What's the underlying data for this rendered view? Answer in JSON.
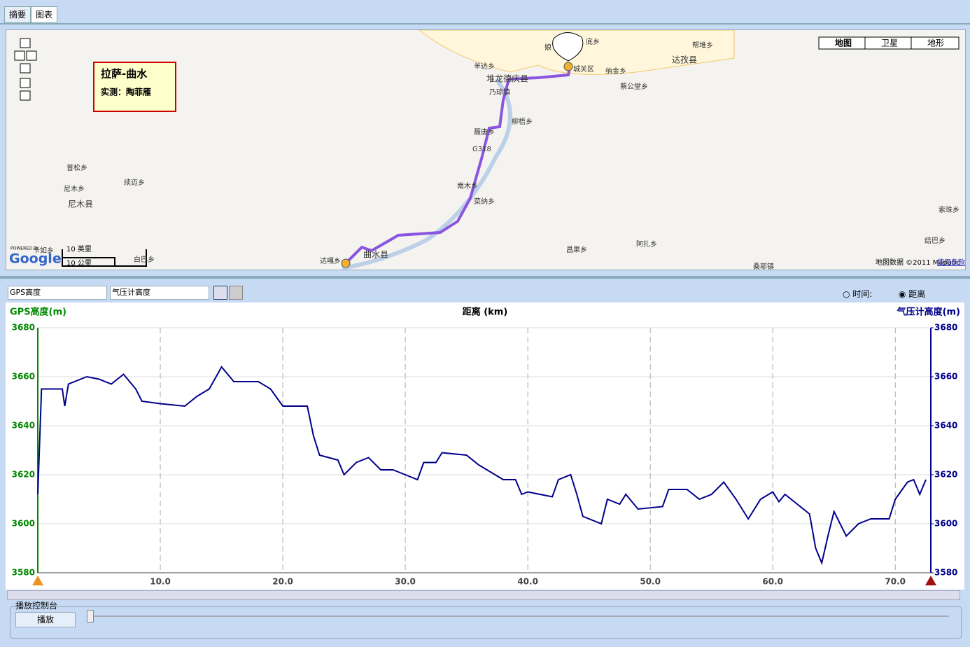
{
  "tabs": [
    "摘要",
    "图表"
  ],
  "map": {
    "info_title": "拉萨-曲水",
    "info_sub": "实测：陶菲雁",
    "types": [
      "地图",
      "卫星",
      "地形"
    ],
    "labels": [
      "羊达乡",
      "堆龙德庆县",
      "乃琼镇",
      "柳梧乡",
      "聂唐乡",
      "G318",
      "南木乡",
      "菜纳乡",
      "曲水县",
      "达嘎乡",
      "普松乡",
      "尼木乡",
      "续迈乡",
      "尼木县",
      "昌果乡",
      "阿扎乡",
      "桑耶镇",
      "纳金乡",
      "蔡公堂乡",
      "达孜县",
      "帮堆乡",
      "索珠乡",
      "结巴乡",
      "城关区",
      "底乡",
      "娘",
      "卡如乡",
      "白巴乡"
    ],
    "scale_mi": "10 英里",
    "scale_km": "10 公里",
    "powered": "POWERED BY",
    "google": "Google",
    "copyright": "地图数据 ©2011 Mapabc - ",
    "terms": "使用条款"
  },
  "controls": {
    "left_select": "GPS高度",
    "right_select": "气压计高度",
    "radio_time": "时间:",
    "radio_dist": "距离"
  },
  "playback": {
    "title": "播放控制台",
    "button": "播放"
  },
  "chart_data": {
    "type": "line",
    "xlabel": "距离 (km)",
    "ylabel": "GPS高度(m)",
    "y2label": "气压计高度(m)",
    "color": "#00008b",
    "grid": true,
    "x": [
      0,
      0.3,
      2,
      2.2,
      2.5,
      4,
      5,
      6,
      7,
      8,
      8.5,
      10,
      12,
      13,
      14,
      15,
      16,
      18,
      19,
      20,
      22,
      22.5,
      23,
      24.5,
      25,
      26,
      27,
      28,
      29,
      30,
      31,
      31.5,
      32.5,
      33,
      35,
      36,
      37,
      38,
      39,
      39.5,
      40,
      42,
      42.5,
      43.5,
      44,
      44.5,
      46,
      46.5,
      47.5,
      48,
      49,
      51,
      51.5,
      53,
      54,
      55,
      56,
      57,
      58,
      59,
      60,
      60.5,
      61,
      62,
      63,
      63.5,
      64,
      64.5,
      65,
      66,
      67,
      68,
      69.5,
      70,
      71,
      71.5,
      72,
      72.5
    ],
    "values": [
      3612,
      3655,
      3655,
      3648,
      3657,
      3660,
      3659,
      3657,
      3661,
      3655,
      3650,
      3649,
      3648,
      3652,
      3655,
      3664,
      3658,
      3658,
      3655,
      3648,
      3648,
      3636,
      3628,
      3626,
      3620,
      3625,
      3627,
      3622,
      3622,
      3620,
      3618,
      3625,
      3625,
      3629,
      3628,
      3624,
      3621,
      3618,
      3618,
      3612,
      3613,
      3611,
      3618,
      3620,
      3612,
      3603,
      3600,
      3610,
      3608,
      3612,
      3606,
      3607,
      3614,
      3614,
      3610,
      3612,
      3617,
      3610,
      3602,
      3610,
      3613,
      3609,
      3612,
      3608,
      3604,
      3590,
      3584,
      3595,
      3605,
      3595,
      3600,
      3602,
      3602,
      3610,
      3617,
      3618,
      3612,
      3618
    ],
    "xlim": [
      0,
      72.9
    ],
    "ylim": [
      3580,
      3680
    ],
    "y2lim": [
      3580,
      3680
    ],
    "xticks": [
      {
        "value": 10,
        "label": "10.0"
      },
      {
        "value": 20,
        "label": "20.0"
      },
      {
        "value": 30,
        "label": "30.0"
      },
      {
        "value": 40,
        "label": "40.0"
      },
      {
        "value": 50,
        "label": "50.0"
      },
      {
        "value": 60,
        "label": "60.0"
      },
      {
        "value": 70,
        "label": "70.0"
      }
    ],
    "yticks": [
      3580,
      3600,
      3620,
      3640,
      3660,
      3680
    ],
    "y2ticks": [
      3580,
      3600,
      3620,
      3640,
      3660,
      3680
    ]
  }
}
